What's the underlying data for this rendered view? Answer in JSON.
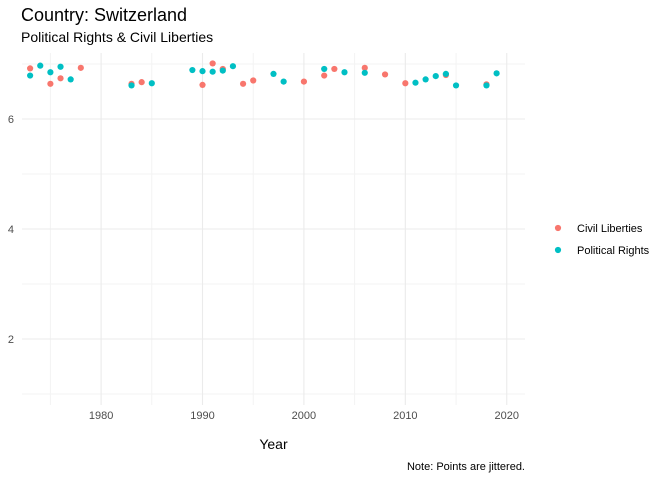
{
  "chart_data": {
    "type": "scatter",
    "title": "Country: Switzerland",
    "subtitle": "Political Rights & Civil Liberties",
    "xlabel": "Year",
    "ylabel": "",
    "caption": "Note: Points are jittered.",
    "xlim": [
      1972.2,
      2021.8
    ],
    "ylim": [
      0.8,
      7.2
    ],
    "x_ticks": [
      1980,
      1990,
      2000,
      2010,
      2020
    ],
    "y_ticks": [
      2,
      4,
      6
    ],
    "grid": true,
    "legend_position": "right",
    "series": [
      {
        "name": "Civil Liberties",
        "color": "#F8766D",
        "points": [
          [
            1973,
            6.92
          ],
          [
            1975,
            6.64
          ],
          [
            1976,
            6.74
          ],
          [
            1978,
            6.93
          ],
          [
            1983,
            6.64
          ],
          [
            1984,
            6.67
          ],
          [
            1990,
            6.62
          ],
          [
            1991,
            7.01
          ],
          [
            1992,
            6.91
          ],
          [
            1994,
            6.64
          ],
          [
            1995,
            6.7
          ],
          [
            2000,
            6.68
          ],
          [
            2002,
            6.79
          ],
          [
            2003,
            6.91
          ],
          [
            2006,
            6.93
          ],
          [
            2008,
            6.81
          ],
          [
            2010,
            6.65
          ],
          [
            2014,
            6.8
          ],
          [
            2018,
            6.63
          ]
        ]
      },
      {
        "name": "Political Rights",
        "color": "#00BFC4",
        "points": [
          [
            1973,
            6.79
          ],
          [
            1974,
            6.97
          ],
          [
            1975,
            6.85
          ],
          [
            1976,
            6.95
          ],
          [
            1977,
            6.72
          ],
          [
            1983,
            6.61
          ],
          [
            1985,
            6.65
          ],
          [
            1989,
            6.89
          ],
          [
            1990,
            6.87
          ],
          [
            1991,
            6.86
          ],
          [
            1992,
            6.88
          ],
          [
            1993,
            6.96
          ],
          [
            1997,
            6.82
          ],
          [
            1998,
            6.68
          ],
          [
            2002,
            6.91
          ],
          [
            2004,
            6.85
          ],
          [
            2006,
            6.84
          ],
          [
            2011,
            6.66
          ],
          [
            2012,
            6.72
          ],
          [
            2013,
            6.78
          ],
          [
            2014,
            6.82
          ],
          [
            2015,
            6.61
          ],
          [
            2018,
            6.61
          ],
          [
            2019,
            6.83
          ]
        ]
      }
    ]
  }
}
